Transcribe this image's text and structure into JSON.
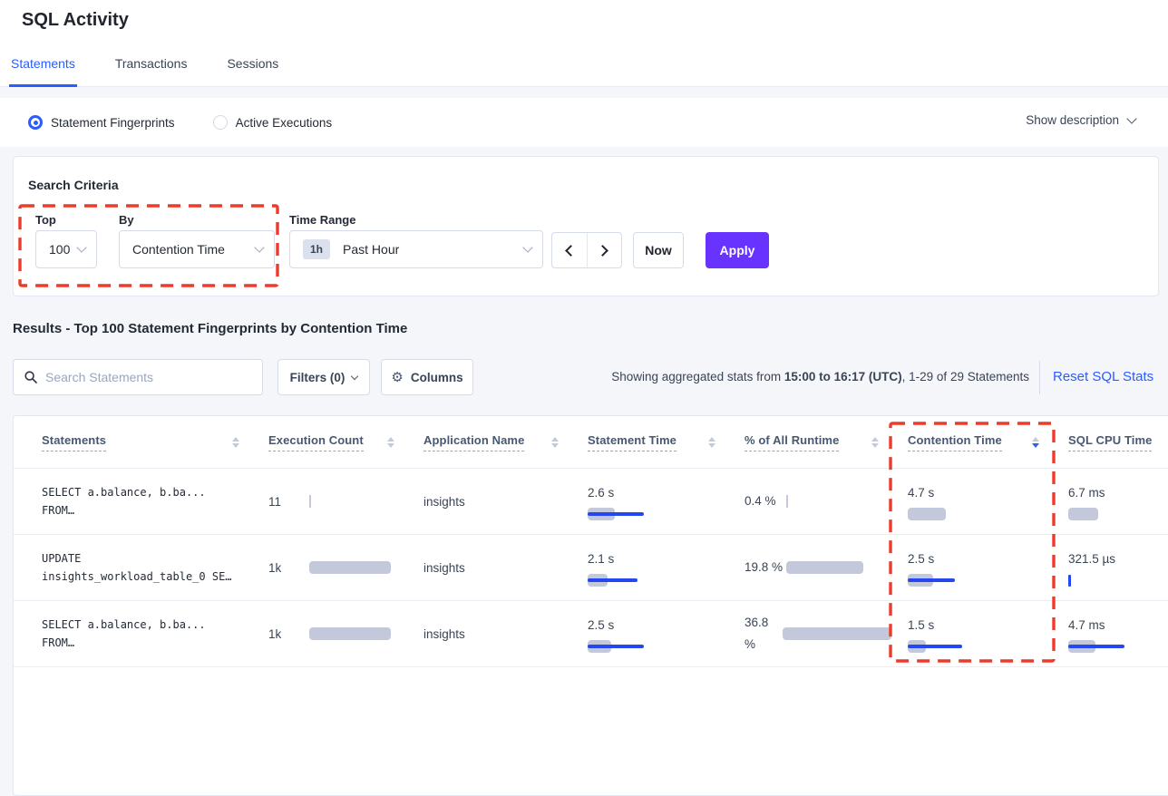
{
  "page": {
    "title": "SQL Activity"
  },
  "tabs": [
    {
      "label": "Statements",
      "active": true
    },
    {
      "label": "Transactions",
      "active": false
    },
    {
      "label": "Sessions",
      "active": false
    }
  ],
  "view_toggle": {
    "options": [
      {
        "label": "Statement Fingerprints",
        "selected": true
      },
      {
        "label": "Active Executions",
        "selected": false
      }
    ],
    "show_description": "Show description"
  },
  "search_criteria": {
    "title": "Search Criteria",
    "top": {
      "label": "Top",
      "value": "100"
    },
    "by": {
      "label": "By",
      "value": "Contention Time"
    },
    "time_range": {
      "label": "Time Range",
      "badge": "1h",
      "value": "Past Hour"
    },
    "now_label": "Now",
    "apply_label": "Apply"
  },
  "results": {
    "heading": "Results - Top 100 Statement Fingerprints by Contention Time",
    "search_placeholder": "Search Statements",
    "filters_label": "Filters (0)",
    "columns_label": "Columns",
    "showing_prefix": "Showing aggregated stats from ",
    "showing_bold": "15:00 to 16:17 (UTC)",
    "showing_suffix": ", 1-29 of 29 Statements",
    "reset_label": "Reset SQL Stats"
  },
  "table": {
    "headers": [
      "Statements",
      "Execution Count",
      "Application Name",
      "Statement Time",
      "% of All Runtime",
      "Contention Time",
      "SQL CPU Time"
    ],
    "sorted_by": "Contention Time",
    "sort_direction": "desc",
    "rows": [
      {
        "sql_line1": "SELECT a.balance, b.ba...",
        "sql_line2": "FROM…",
        "execution_count": "11",
        "application_name": "insights",
        "statement_time": "2.6 s",
        "pct_of_runtime": "0.4 %",
        "contention_time": "4.7 s",
        "sql_cpu_time": "6.7 ms",
        "bars": {
          "exec": {
            "gtick": true
          },
          "stmt": {
            "mean": 30,
            "line": 62
          },
          "pct": {
            "gtick": true
          },
          "cont": {
            "mean": 42
          },
          "cpu": {
            "mean": 33
          }
        }
      },
      {
        "sql_line1": "UPDATE",
        "sql_line2": "insights_workload_table_0 SE…",
        "execution_count": "1k",
        "application_name": "insights",
        "statement_time": "2.1 s",
        "pct_of_runtime": "19.8 %",
        "contention_time": "2.5 s",
        "sql_cpu_time": "321.5 µs",
        "bars": {
          "exec": {
            "mean": 90
          },
          "stmt": {
            "mean": 22,
            "line": 55
          },
          "pct": {
            "mean": 85
          },
          "cont": {
            "mean": 28,
            "line": 52
          },
          "cpu": {
            "vtick": true
          }
        }
      },
      {
        "sql_line1": "SELECT a.balance, b.ba...",
        "sql_line2": "FROM…",
        "execution_count": "1k",
        "application_name": "insights",
        "statement_time": "2.5 s",
        "pct_of_runtime": "36.8 %",
        "contention_time": "1.5 s",
        "sql_cpu_time": "4.7 ms",
        "bars": {
          "exec": {
            "mean": 90
          },
          "stmt": {
            "mean": 26,
            "line": 62
          },
          "pct": {
            "mean": 120
          },
          "cont": {
            "mean": 20,
            "line": 60
          },
          "cpu": {
            "mean": 30,
            "line": 62
          }
        }
      }
    ]
  },
  "colors": {
    "accent_blue": "#2a5cff",
    "bar_blue": "#2547f0",
    "bar_gray": "#c3c9da",
    "apply_purple": "#6933ff",
    "annotation_red": "#ee3a2a",
    "page_background": "#f4f6fa"
  }
}
